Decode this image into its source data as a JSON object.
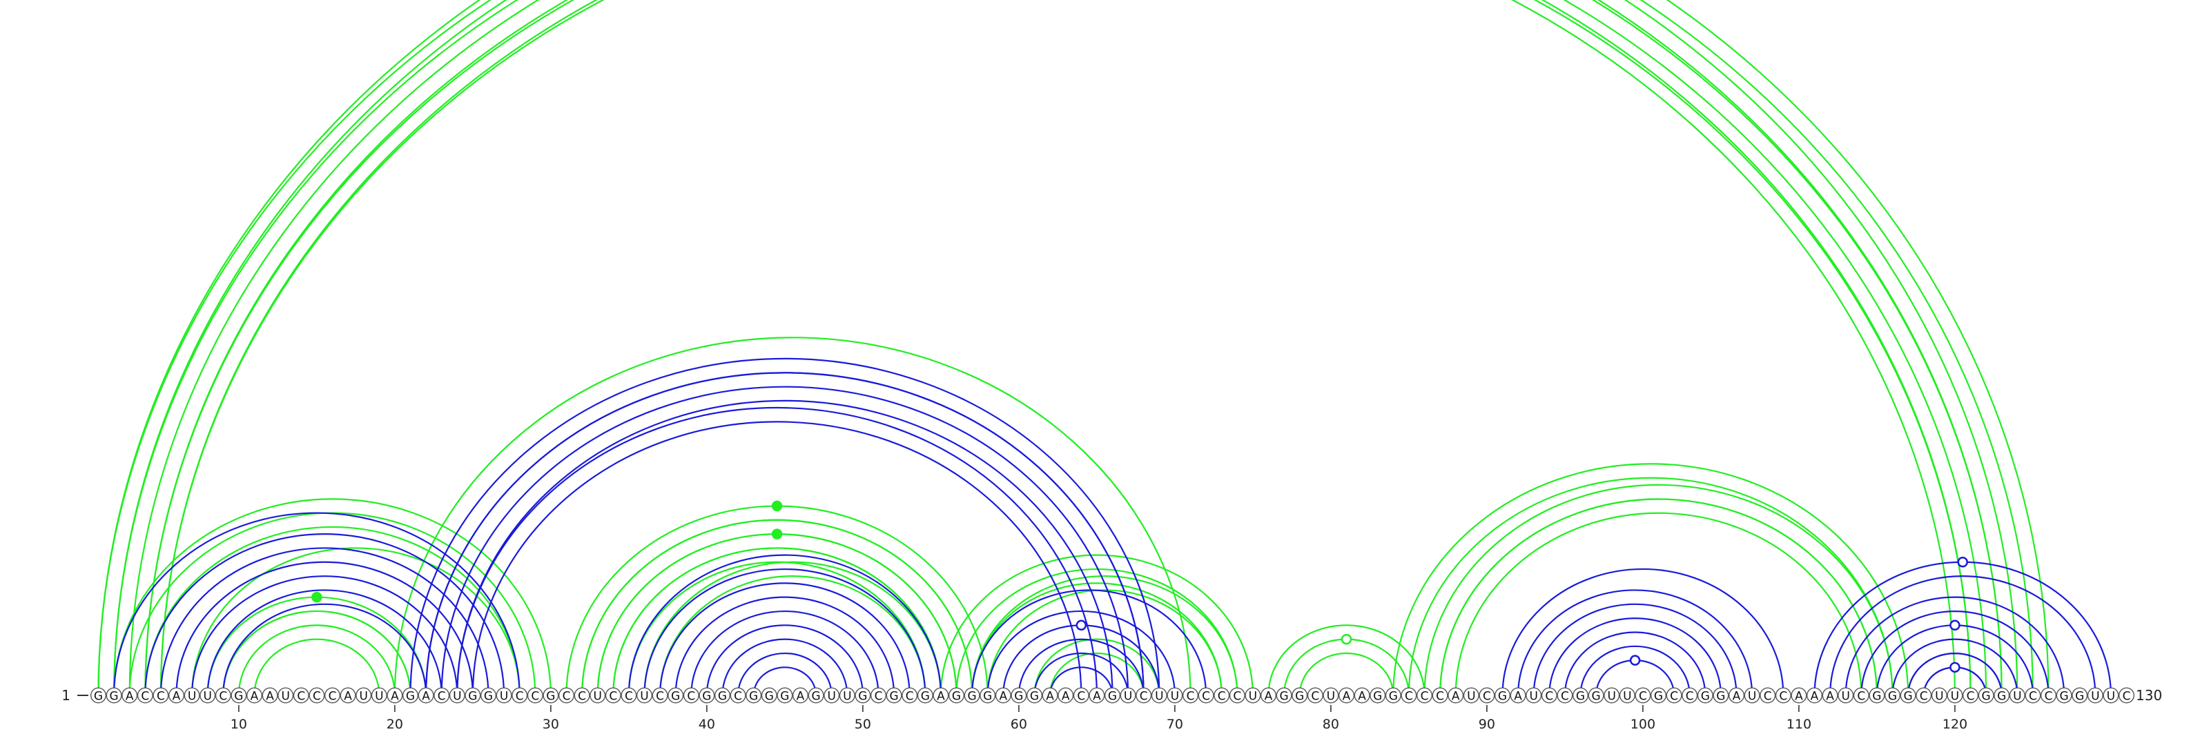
{
  "diagram": {
    "sequence": "GGACCAUUCGAAUCCCAUUAGACUGGUCCGCCUCCUCGCGGCGGGAGUUGCGCGAGGGAGGAACAGUCUUCCCCUAGGCUAAGGCCCAUCGAUCCGGUUCGCCGGAUCCAAAUCGGGCUUCGGUCCGGUUC",
    "length": 130,
    "start_label": "1",
    "end_label": "130",
    "tick_labels": [
      "10",
      "20",
      "30",
      "40",
      "50",
      "60",
      "70",
      "80",
      "90",
      "100",
      "110",
      "120"
    ],
    "colors": {
      "green": "#22ee22",
      "blue": "#1a1adb",
      "nucleotide_stroke": "#555555"
    },
    "green_helices": [
      {
        "i": 1,
        "j": 124,
        "n": 2,
        "marker": {
          "type": "open",
          "level": 1
        }
      },
      {
        "i": 1,
        "j": 126,
        "n": 2
      },
      {
        "i": 3,
        "j": 123,
        "n": 3
      },
      {
        "i": 4,
        "j": 121,
        "n": 2
      },
      {
        "i": 2,
        "j": 30,
        "n": 1
      },
      {
        "i": 3,
        "j": 29,
        "n": 2
      },
      {
        "i": 7,
        "j": 28,
        "n": 1
      },
      {
        "i": 8,
        "j": 22,
        "n": 2,
        "marker": {
          "type": "filled",
          "level": 1
        }
      },
      {
        "i": 9,
        "j": 21,
        "n": 3
      },
      {
        "i": 20,
        "j": 71,
        "n": 1
      },
      {
        "i": 31,
        "j": 58,
        "n": 2,
        "marker": {
          "type": "filled",
          "level": 1
        }
      },
      {
        "i": 32,
        "j": 57,
        "n": 3
      },
      {
        "i": 33,
        "j": 56,
        "n": 3,
        "marker": {
          "type": "filled",
          "level": 1
        }
      },
      {
        "i": 36,
        "j": 55,
        "n": 2
      },
      {
        "i": 55,
        "j": 75,
        "n": 3
      },
      {
        "i": 57,
        "j": 74,
        "n": 2
      },
      {
        "i": 61,
        "j": 69,
        "n": 2
      },
      {
        "i": 76,
        "j": 86,
        "n": 3,
        "marker": {
          "type": "open",
          "level": 2
        }
      },
      {
        "i": 84,
        "j": 117,
        "n": 2
      },
      {
        "i": 86,
        "j": 116,
        "n": 2
      },
      {
        "i": 87,
        "j": 115,
        "n": 2
      }
    ],
    "blue_helices": [
      {
        "i": 2,
        "j": 28,
        "n": 1
      },
      {
        "i": 4,
        "j": 27,
        "n": 6
      },
      {
        "i": 21,
        "j": 69,
        "n": 2
      },
      {
        "i": 22,
        "j": 68,
        "n": 3
      },
      {
        "i": 24,
        "j": 65,
        "n": 2
      },
      {
        "i": 35,
        "j": 55,
        "n": 1
      },
      {
        "i": 36,
        "j": 54,
        "n": 8
      },
      {
        "i": 57,
        "j": 72,
        "n": 1
      },
      {
        "i": 58,
        "j": 70,
        "n": 5,
        "marker": {
          "type": "open",
          "level": 2
        }
      },
      {
        "i": 91,
        "j": 109,
        "n": 1
      },
      {
        "i": 92,
        "j": 107,
        "n": 6,
        "marker": {
          "type": "open",
          "level": 6
        }
      },
      {
        "i": 111,
        "j": 130,
        "n": 2,
        "marker": {
          "type": "open",
          "level": 1
        }
      },
      {
        "i": 113,
        "j": 127,
        "n": 6,
        "marker": {
          "type": "open",
          "level": 3
        }
      },
      {
        "i": 117,
        "j": 123,
        "n": 2,
        "marker": {
          "type": "open",
          "level": 2
        }
      }
    ]
  }
}
